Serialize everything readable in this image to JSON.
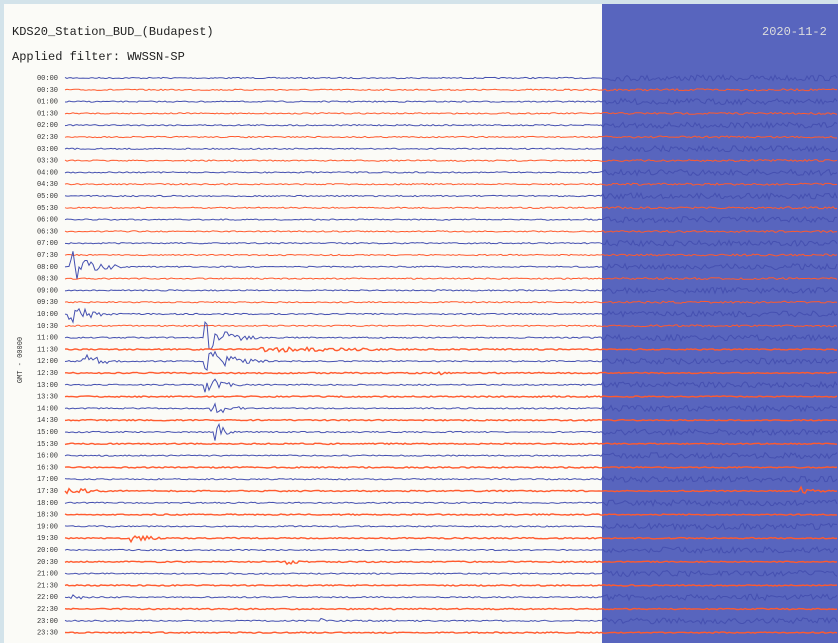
{
  "header": {
    "station": "KDS20_Station_BUD_(Budapest)",
    "filter": "Applied filter: WWSSN-SP",
    "date": "2020-11-2",
    "axis_label": "GMT - 00000"
  },
  "rows": [
    "00:00",
    "00:30",
    "01:00",
    "01:30",
    "02:00",
    "02:30",
    "03:00",
    "03:30",
    "04:00",
    "04:30",
    "05:00",
    "05:30",
    "06:00",
    "06:30",
    "07:00",
    "07:30",
    "08:00",
    "08:30",
    "09:00",
    "09:30",
    "10:00",
    "10:30",
    "11:00",
    "11:30",
    "12:00",
    "12:30",
    "13:00",
    "13:30",
    "14:00",
    "14:30",
    "15:00",
    "15:30",
    "16:00",
    "16:30",
    "17:00",
    "17:30",
    "18:00",
    "18:30",
    "19:00",
    "19:30",
    "20:00",
    "20:30",
    "21:00",
    "21:30",
    "22:00",
    "22:30",
    "23:00",
    "23:30"
  ]
}
